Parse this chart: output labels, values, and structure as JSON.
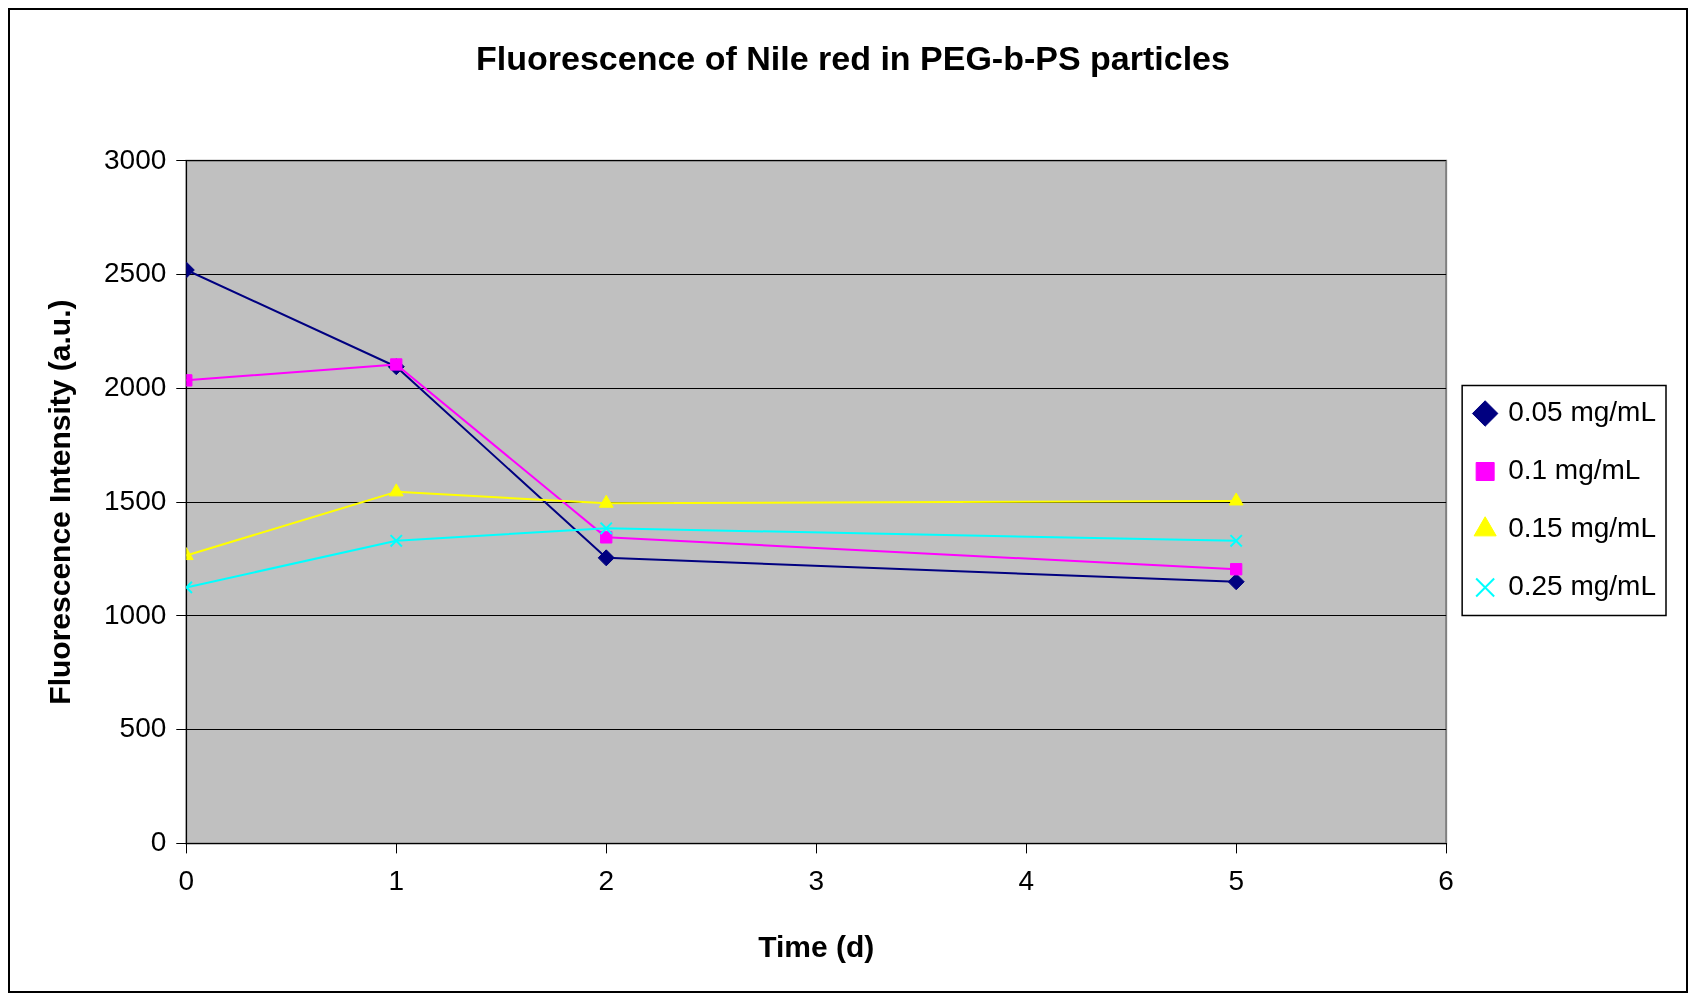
{
  "chart_data": {
    "type": "line",
    "title": "Fluorescence of Nile red in PEG-b-PS particles",
    "xlabel": "Time (d)",
    "ylabel": "Fluorescence Intensity (a.u.)",
    "x": [
      0,
      1,
      2,
      5
    ],
    "series": [
      {
        "name": "0.05 mg/mL",
        "color": "#000080",
        "marker": "diamond",
        "values": [
          2520,
          2095,
          1255,
          1150
        ]
      },
      {
        "name": "0.1 mg/mL",
        "color": "#ff00ff",
        "marker": "square",
        "values": [
          2035,
          2105,
          1345,
          1205
        ]
      },
      {
        "name": "0.15 mg/mL",
        "color": "#ffff00",
        "marker": "triangle",
        "values": [
          1265,
          1545,
          1495,
          1505
        ]
      },
      {
        "name": "0.25 mg/mL",
        "color": "#00ffff",
        "marker": "cross",
        "values": [
          1125,
          1330,
          1385,
          1330
        ]
      }
    ],
    "xlim": [
      0,
      6
    ],
    "xticks": [
      0,
      1,
      2,
      3,
      4,
      5,
      6
    ],
    "ylim": [
      0,
      3000
    ],
    "yticks": [
      0,
      500,
      1000,
      1500,
      2000,
      2500,
      3000
    ],
    "grid": "y",
    "legend": "right",
    "line_style": "solid"
  }
}
